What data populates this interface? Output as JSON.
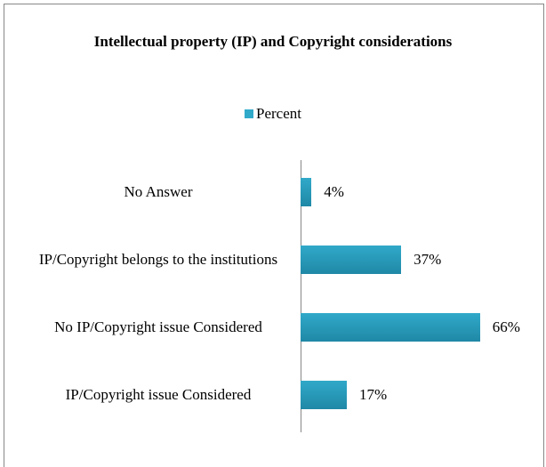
{
  "chart_data": {
    "type": "bar",
    "orientation": "horizontal",
    "title": "Intellectual property (IP) and Copyright considerations",
    "categories": [
      "No Answer",
      "IP/Copyright belongs to the institutions",
      "No IP/Copyright issue Considered",
      "IP/Copyright issue Considered"
    ],
    "series": [
      {
        "name": "Percent",
        "color": "#31a9c9",
        "values": [
          4,
          37,
          66,
          17
        ],
        "value_labels": [
          "4%",
          "37%",
          "66%",
          "17%"
        ]
      }
    ],
    "xlim": [
      0,
      70
    ],
    "legend": "top"
  }
}
